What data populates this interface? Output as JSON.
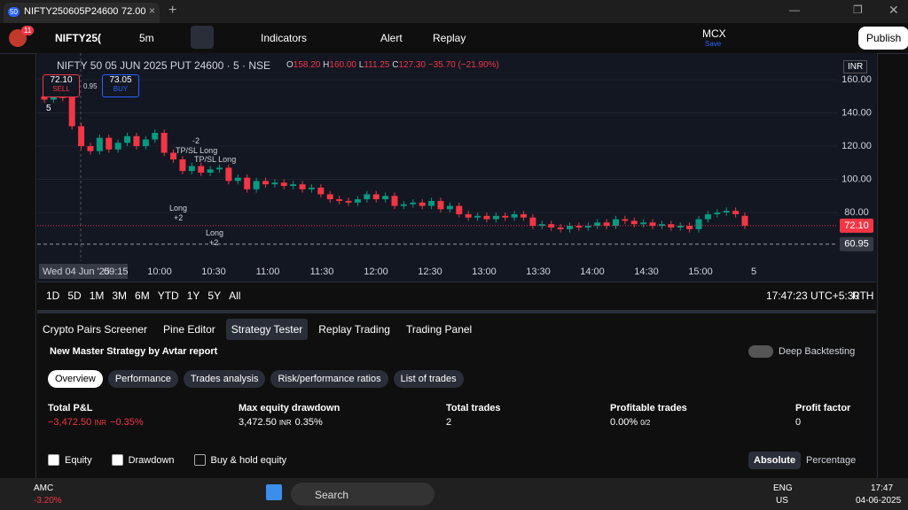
{
  "tab": {
    "badge": "50",
    "symbol": "NIFTY250605P24600",
    "price": "72.00"
  },
  "toolbar": {
    "badge": "11",
    "symbol": "NIFTY25(",
    "interval": "5m",
    "indicators": "Indicators",
    "alert": "Alert",
    "replay": "Replay",
    "exchange": "MCX",
    "save": "Save",
    "publish": "Publish"
  },
  "legend": {
    "title": "NIFTY 50 05 JUN 2025 PUT 24600 · 5 · NSE",
    "o_label": "O",
    "o": "158.20",
    "h_label": "H",
    "h": "160.00",
    "l_label": "L",
    "l": "111.25",
    "c_label": "C",
    "c": "127.30",
    "change": "−35.70 (−21.90%)"
  },
  "order": {
    "sell_price": "72.10",
    "sell": "SELL",
    "spread": "0.95",
    "buy_price": "73.05",
    "buy": "BUY",
    "lots": "5"
  },
  "currency": "INR",
  "annotations": [
    "-2",
    "TP/SL Long",
    "TP/SL Long",
    "Long",
    "+2",
    "Long",
    "+2"
  ],
  "chart_data": {
    "type": "candlestick",
    "ylim": [
      50.7,
      176
    ],
    "yticks": [
      {
        "value": 160,
        "label": "160.00"
      },
      {
        "value": 140,
        "label": "140.00"
      },
      {
        "value": 120,
        "label": "120.00"
      },
      {
        "value": 100,
        "label": "100.00"
      },
      {
        "value": 80,
        "label": "80.00"
      }
    ],
    "last_price": {
      "value": 72.1,
      "label": "72.10"
    },
    "cursor_price": {
      "value": 60.95,
      "label": "60.95"
    },
    "up_color": "#089981",
    "down_color": "#f23645",
    "time_labels": [
      "Wed 04 Jun '25",
      "09:15",
      "10:00",
      "10:30",
      "11:00",
      "11:30",
      "12:00",
      "12:30",
      "13:00",
      "13:30",
      "14:00",
      "14:30",
      "15:00",
      "5"
    ],
    "open": [
      150,
      148,
      151,
      155,
      132,
      120,
      117,
      125,
      118,
      122,
      126,
      120,
      124,
      128,
      116,
      112,
      105,
      108,
      104,
      106,
      107,
      99,
      101,
      94,
      99,
      97,
      98,
      96,
      97,
      94,
      95,
      91,
      88,
      87,
      86,
      88,
      91,
      88,
      90,
      84,
      85,
      86,
      84,
      87,
      82,
      84,
      79,
      77,
      78,
      76,
      78,
      77,
      79,
      77,
      72,
      73,
      71,
      70,
      72,
      71,
      72,
      74,
      72,
      76,
      75,
      73,
      74,
      72,
      73,
      71,
      72,
      70,
      76,
      79,
      80,
      81,
      78
    ],
    "high": [
      152,
      153,
      153,
      158,
      134,
      122,
      127,
      127,
      124,
      128,
      128,
      126,
      130,
      130,
      118,
      114,
      110,
      110,
      108,
      109,
      109,
      103,
      103,
      101,
      101,
      100,
      100,
      99,
      99,
      97,
      97,
      93,
      90,
      89,
      90,
      93,
      93,
      92,
      92,
      87,
      88,
      88,
      89,
      89,
      86,
      86,
      81,
      80,
      80,
      80,
      80,
      81,
      81,
      79,
      75,
      75,
      73,
      74,
      74,
      74,
      76,
      76,
      78,
      78,
      77,
      76,
      76,
      75,
      75,
      74,
      74,
      78,
      81,
      82,
      83,
      83,
      80
    ],
    "low": [
      146,
      146,
      147,
      130,
      118,
      115,
      115,
      116,
      116,
      120,
      118,
      118,
      122,
      114,
      110,
      103,
      103,
      102,
      102,
      104,
      97,
      97,
      92,
      92,
      95,
      95,
      94,
      94,
      92,
      92,
      89,
      86,
      85,
      84,
      84,
      86,
      86,
      86,
      82,
      82,
      83,
      82,
      82,
      80,
      80,
      77,
      75,
      75,
      74,
      74,
      75,
      75,
      75,
      70,
      70,
      69,
      68,
      68,
      69,
      69,
      70,
      70,
      70,
      73,
      71,
      71,
      70,
      70,
      69,
      69,
      68,
      68,
      74,
      77,
      78,
      77,
      70
    ],
    "close": [
      148,
      151,
      149,
      132,
      120,
      117,
      125,
      118,
      122,
      126,
      120,
      124,
      128,
      116,
      112,
      105,
      108,
      104,
      106,
      107,
      99,
      101,
      94,
      99,
      97,
      98,
      96,
      97,
      94,
      95,
      91,
      88,
      87,
      86,
      88,
      91,
      88,
      90,
      84,
      85,
      86,
      84,
      87,
      82,
      84,
      79,
      77,
      78,
      76,
      78,
      77,
      79,
      77,
      72,
      73,
      71,
      70,
      72,
      71,
      72,
      74,
      72,
      76,
      75,
      73,
      74,
      72,
      73,
      71,
      72,
      70,
      76,
      79,
      80,
      81,
      79,
      72.1
    ]
  },
  "ranges": [
    "1D",
    "5D",
    "1M",
    "3M",
    "6M",
    "YTD",
    "1Y",
    "5Y",
    "All"
  ],
  "clock": "17:47:23 UTC+5:30",
  "rth": "RTH",
  "panel_tabs": [
    "Crypto Pairs Screener",
    "Pine Editor",
    "Strategy Tester",
    "Replay Trading",
    "Trading Panel"
  ],
  "strategy": {
    "name": "New Master Strategy by Avtar report",
    "deep": "Deep Backtesting",
    "subtabs": [
      "Overview",
      "Performance",
      "Trades analysis",
      "Risk/performance ratios",
      "List of trades"
    ],
    "metrics": [
      {
        "label": "Total P&L",
        "value": "−3,472.50",
        "unit": "INR",
        "pct": "−0.35%"
      },
      {
        "label": "Max equity drawdown",
        "value": "3,472.50",
        "unit": "INR",
        "pct": "0.35%"
      },
      {
        "label": "Total trades",
        "value": "2"
      },
      {
        "label": "Profitable trades",
        "value": "0.00%",
        "pct": "0/2"
      },
      {
        "label": "Profit factor",
        "value": "0"
      }
    ],
    "checks": [
      "Equity",
      "Drawdown",
      "Buy & hold equity"
    ],
    "absolute": "Absolute",
    "percentage": "Percentage"
  },
  "taskbar": {
    "ticker": "AMC",
    "change": "-3.20%",
    "search": "Search",
    "lang": "ENG",
    "region": "US",
    "time": "17:47",
    "date": "04-06-2025"
  }
}
